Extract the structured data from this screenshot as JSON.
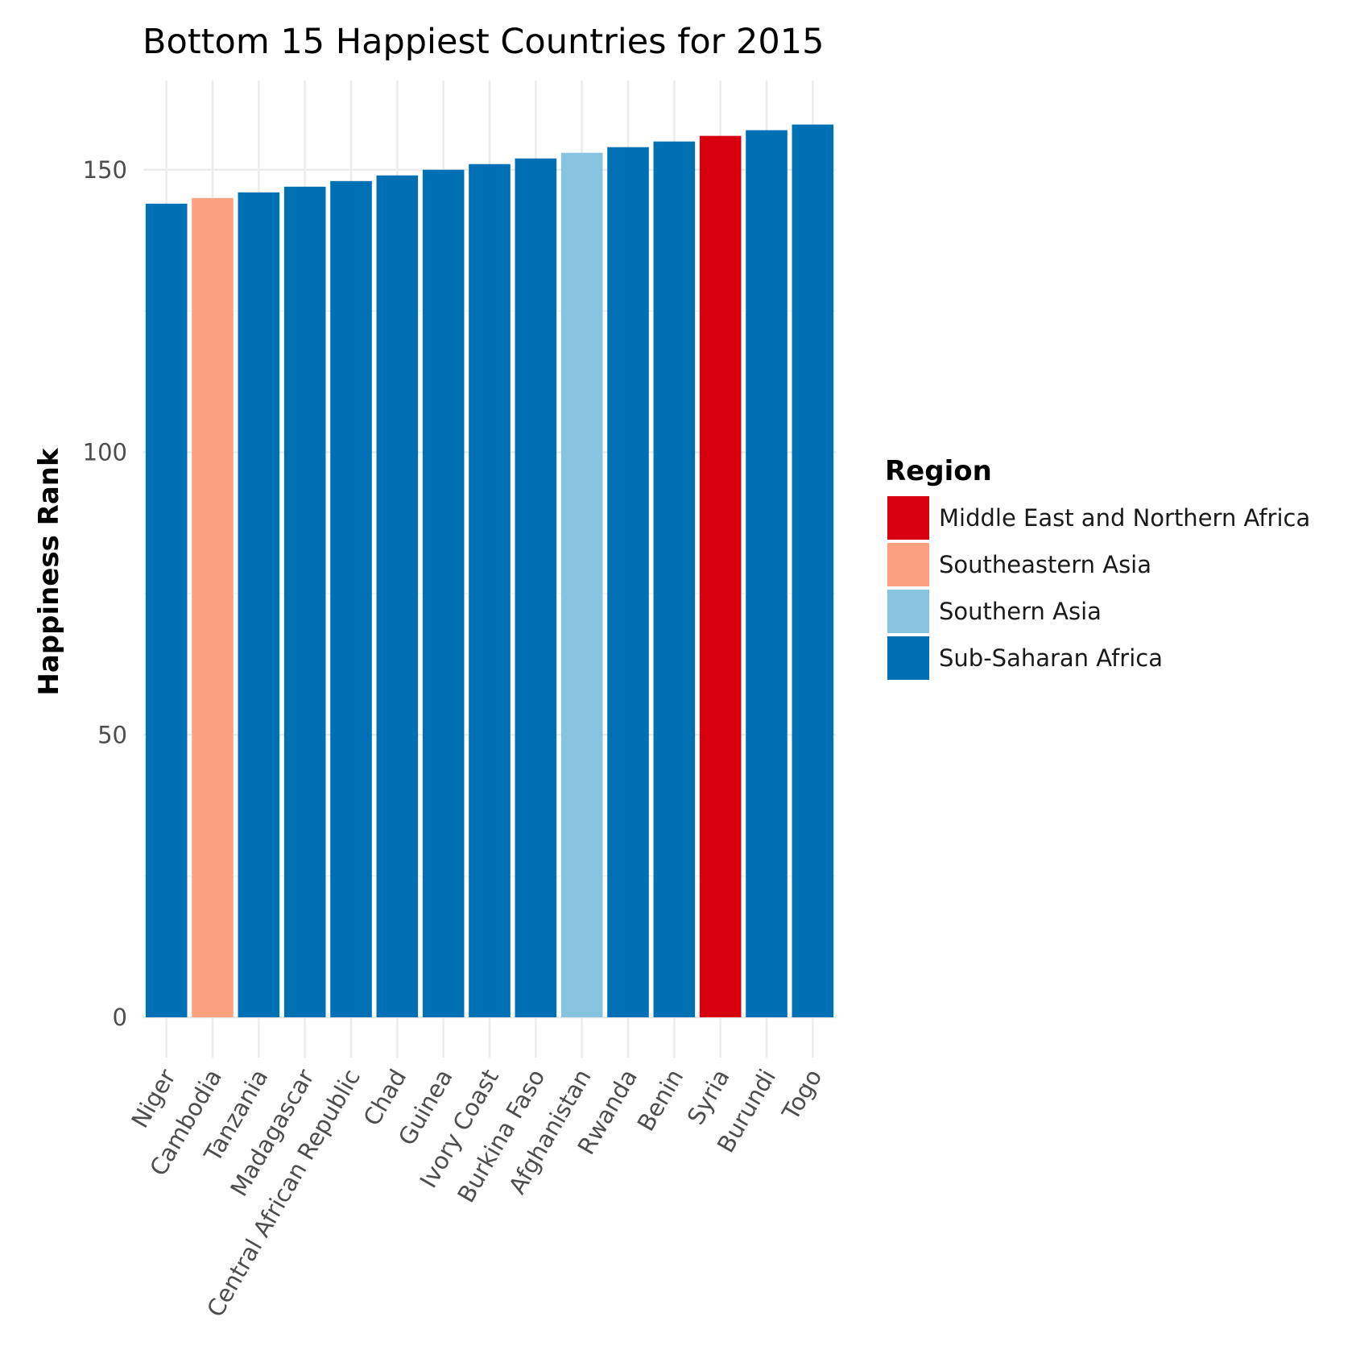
{
  "chart_data": {
    "type": "bar",
    "title": "Bottom 15 Happiest Countries for 2015",
    "xlabel": "",
    "ylabel": "Happiness Rank",
    "ylim": [
      0,
      162
    ],
    "yticks": [
      0,
      50,
      100,
      150
    ],
    "grid": true,
    "legend_position": "right",
    "legend_title": "Region",
    "categories": [
      "Niger",
      "Cambodia",
      "Tanzania",
      "Madagascar",
      "Central African Republic",
      "Chad",
      "Guinea",
      "Ivory Coast",
      "Burkina Faso",
      "Afghanistan",
      "Rwanda",
      "Benin",
      "Syria",
      "Burundi",
      "Togo"
    ],
    "values": [
      144,
      145,
      146,
      147,
      148,
      149,
      150,
      151,
      152,
      153,
      154,
      155,
      156,
      157,
      158
    ],
    "regions": [
      "Sub-Saharan Africa",
      "Southeastern Asia",
      "Sub-Saharan Africa",
      "Sub-Saharan Africa",
      "Sub-Saharan Africa",
      "Sub-Saharan Africa",
      "Sub-Saharan Africa",
      "Sub-Saharan Africa",
      "Sub-Saharan Africa",
      "Southern Asia",
      "Sub-Saharan Africa",
      "Sub-Saharan Africa",
      "Middle East and Northern Africa",
      "Sub-Saharan Africa",
      "Sub-Saharan Africa"
    ],
    "legend": [
      {
        "name": "Middle East and Northern Africa",
        "color": "#d7000f"
      },
      {
        "name": "Southeastern Asia",
        "color": "#fca17e"
      },
      {
        "name": "Southern Asia",
        "color": "#87c4df"
      },
      {
        "name": "Sub-Saharan Africa",
        "color": "#0070b5"
      }
    ]
  }
}
